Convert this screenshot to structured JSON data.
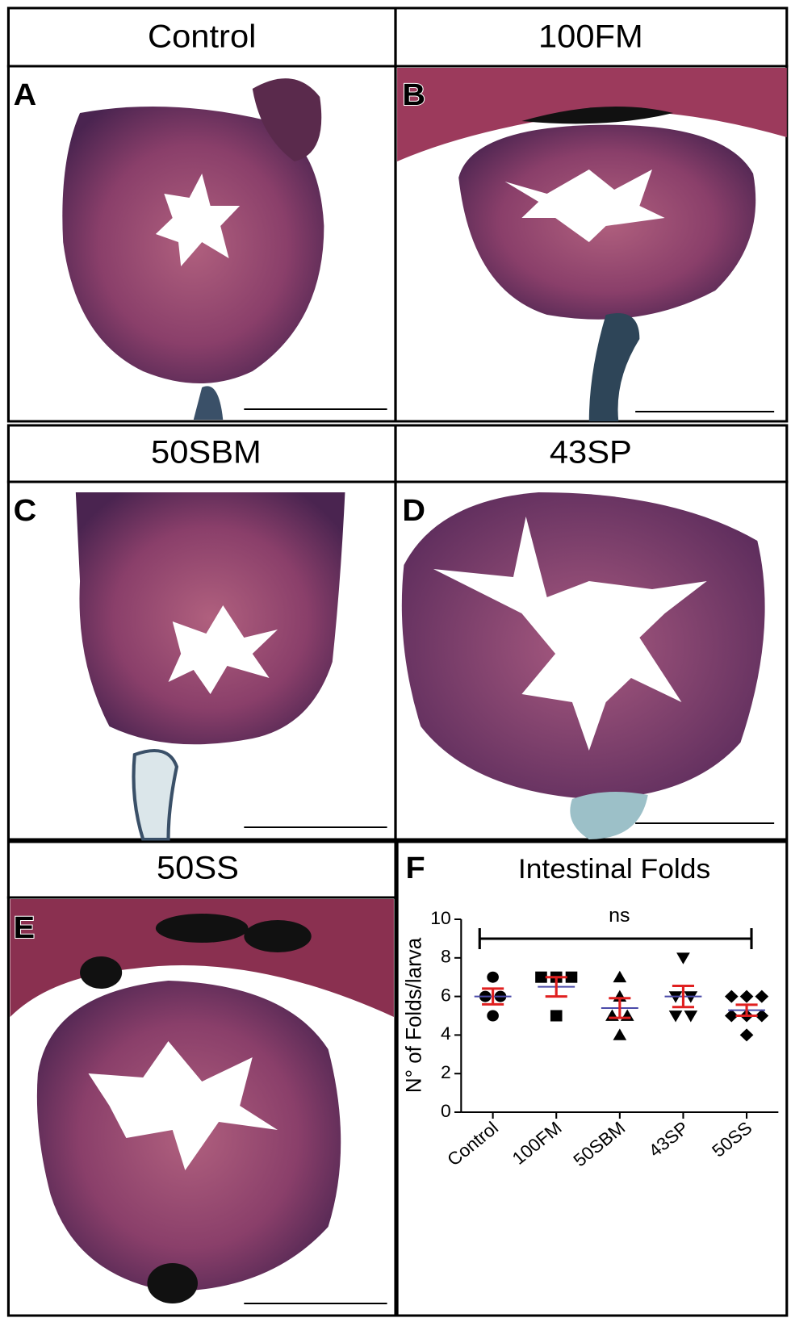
{
  "panels": [
    {
      "title": "Control",
      "letter": "A"
    },
    {
      "title": "100FM",
      "letter": "B"
    },
    {
      "title": "50SBM",
      "letter": "C"
    },
    {
      "title": "43SP",
      "letter": "D"
    },
    {
      "title": "50SS",
      "letter": "E"
    }
  ],
  "chart_data": {
    "type": "dot",
    "letter": "F",
    "title": "Intestinal Folds",
    "y_label": "N° of Folds/larva",
    "annotation": "ns",
    "categories": [
      "Control",
      "100FM",
      "50SBM",
      "43SP",
      "50SS"
    ],
    "markers": [
      "circle",
      "square",
      "triangle-up",
      "triangle-down",
      "diamond"
    ],
    "values": [
      [
        7,
        6,
        6,
        5
      ],
      [
        7,
        7,
        7,
        5
      ],
      [
        7,
        6,
        5,
        5,
        4
      ],
      [
        8,
        6,
        6,
        5,
        5
      ],
      [
        6,
        6,
        6,
        5,
        5,
        5,
        4
      ]
    ],
    "color": "#000000",
    "mean_color": "#4a4aa8",
    "error_color": "#e02020",
    "ylim": [
      0,
      10
    ],
    "yticks": [
      0,
      2,
      4,
      6,
      8,
      10
    ]
  }
}
